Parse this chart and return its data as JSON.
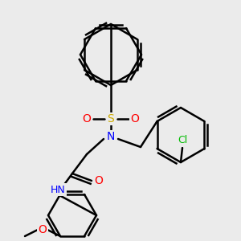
{
  "bg_color": "#ebebeb",
  "bond_color": "black",
  "bond_width": 1.8,
  "atom_colors": {
    "N": "#0000ff",
    "O": "#ff0000",
    "S": "#ccaa00",
    "Cl": "#00bb00",
    "C": "black",
    "H": "#666666"
  },
  "figsize": [
    3.0,
    3.0
  ],
  "dpi": 100,
  "ring_bond_alt": [
    [
      0,
      1,
      2,
      3,
      4,
      5
    ],
    [
      1,
      3,
      5
    ]
  ]
}
